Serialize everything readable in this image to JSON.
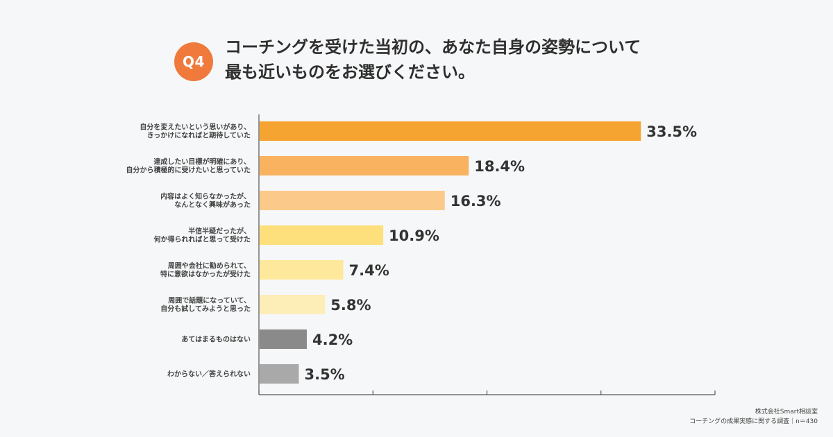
{
  "question": {
    "badge": "Q4",
    "title_line1": "コーチングを受けた当初の、あなた自身の姿勢について",
    "title_line2": "最も近いものをお選びください。"
  },
  "footer": {
    "company": "株式会社Smart相談室",
    "survey": "コーチングの成果実感に関する調査｜n＝430"
  },
  "colors": {
    "accent": "#f07a3c",
    "axis": "#555555"
  },
  "chart_data": {
    "type": "bar",
    "orientation": "horizontal",
    "xlim": [
      0,
      40
    ],
    "ticks": [
      0,
      10,
      20,
      30,
      40
    ],
    "unit": "%",
    "categories": [
      [
        "自分を変えたいという思いがあり、",
        "きっかけになればと期待していた"
      ],
      [
        "達成したい目標が明確にあり、",
        "自分から積極的に受けたいと思っていた"
      ],
      [
        "内容はよく知らなかったが、",
        "なんとなく興味があった"
      ],
      [
        "半信半疑だったが、",
        "何か得られればと思って受けた"
      ],
      [
        "周囲や会社に勧められて、",
        "特に意欲はなかったが受けた"
      ],
      [
        "周囲で話題になっていて、",
        "自分も試してみようと思った"
      ],
      [
        "あてはまるものはない"
      ],
      [
        "わからない／答えられない"
      ]
    ],
    "values": [
      33.5,
      18.4,
      16.3,
      10.9,
      7.4,
      5.8,
      4.2,
      3.5
    ],
    "value_labels": [
      "33.5%",
      "18.4%",
      "16.3%",
      "10.9%",
      "7.4%",
      "5.8%",
      "4.2%",
      "3.5%"
    ],
    "bar_colors": [
      "#f6a431",
      "#f8b260",
      "#fbc989",
      "#fde07c",
      "#fde89c",
      "#fdeeb8",
      "#8a8a8a",
      "#a9a9a9"
    ]
  }
}
